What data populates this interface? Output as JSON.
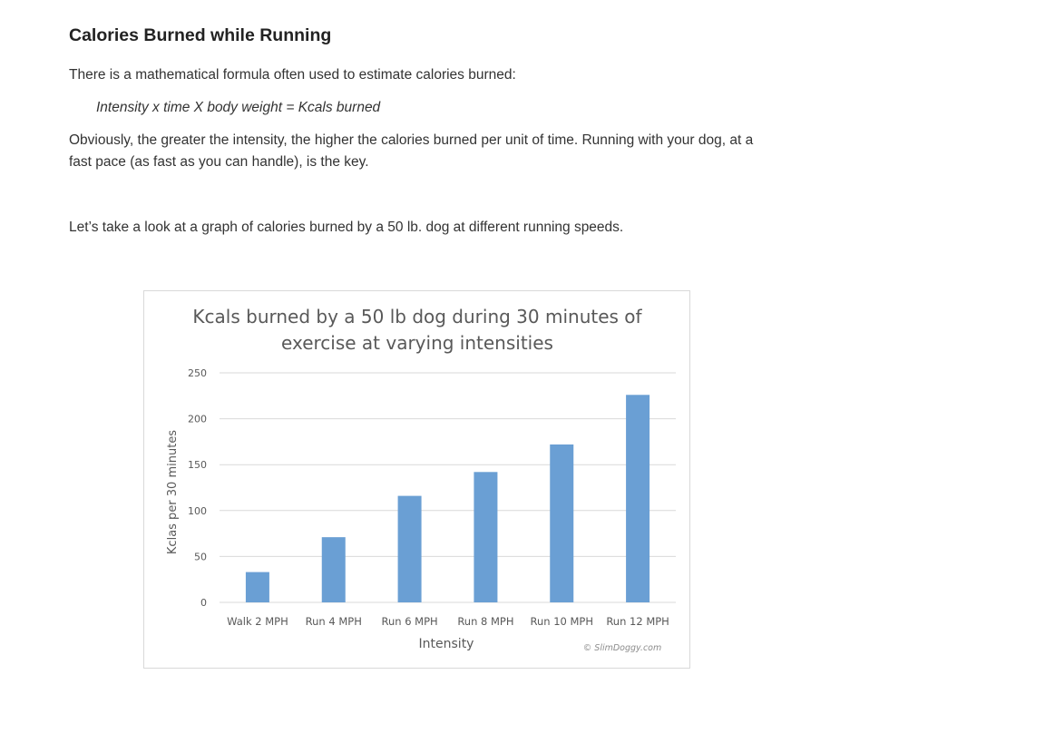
{
  "article": {
    "heading": "Calories Burned while Running",
    "intro": "There is a mathematical formula often used to estimate calories burned:",
    "formula": "Intensity x time X body weight = Kcals burned",
    "explanation": "Obviously, the greater the intensity, the higher the calories burned per unit of time. Running with your dog, at a fast pace (as fast as you can handle), is the key.",
    "graph_intro": "Let’s take a look at a graph of calories burned by a 50 lb. dog at different running speeds."
  },
  "chart_data": {
    "type": "bar",
    "title_lines": [
      "Kcals burned by a 50 lb dog during 30 minutes of",
      "exercise at varying intensities"
    ],
    "xlabel": "Intensity",
    "ylabel": "Kclas per 30 minutes",
    "categories": [
      "Walk 2 MPH",
      "Run 4 MPH",
      "Run 6 MPH",
      "Run 8 MPH",
      "Run 10 MPH",
      "Run 12 MPH"
    ],
    "values": [
      33,
      71,
      116,
      142,
      172,
      226
    ],
    "ylim": [
      0,
      250
    ],
    "yticks": [
      0,
      50,
      100,
      150,
      200,
      250
    ],
    "grid": true,
    "bar_color": "#6a9fd4",
    "watermark": "© SlimDoggy.com"
  }
}
